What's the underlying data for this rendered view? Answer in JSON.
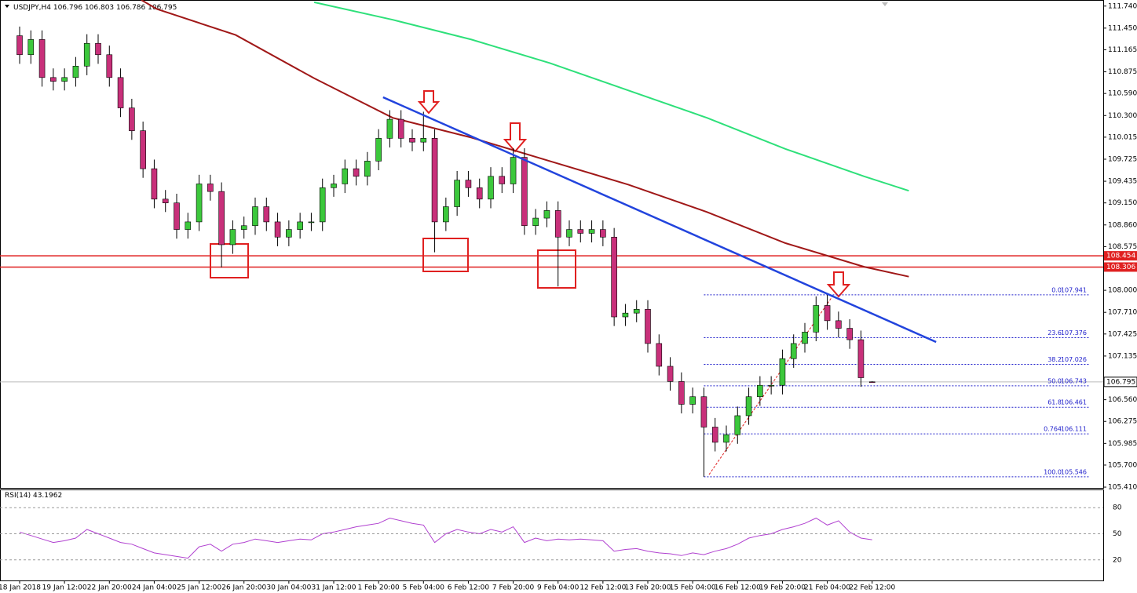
{
  "chart_data": {
    "type": "candlestick",
    "title": "USDJPY,H4",
    "ohlc": {
      "open": [
        111.35,
        111.1,
        111.3,
        110.8,
        110.75,
        110.8,
        110.95,
        111.25,
        111.1,
        110.8,
        110.4,
        110.1,
        109.6,
        109.2,
        109.15,
        108.8,
        108.9,
        109.4,
        109.3,
        108.6,
        108.8,
        108.85,
        109.1,
        108.9,
        108.7,
        108.8,
        108.9,
        108.9,
        109.35,
        109.4,
        109.6,
        109.5,
        109.7,
        110.0,
        110.25,
        110.0,
        109.95,
        110.0,
        108.9,
        109.1,
        109.45,
        109.35,
        109.2,
        109.5,
        109.4,
        109.75,
        108.85,
        108.95,
        109.05,
        108.7,
        108.8,
        108.75,
        108.8,
        108.7,
        107.65,
        107.7,
        107.75,
        107.3,
        107.0,
        106.8,
        106.5,
        106.6,
        106.2,
        106.0,
        106.1,
        106.35,
        106.6,
        106.75,
        106.75,
        107.1,
        107.3,
        107.45,
        107.8,
        107.6,
        107.5,
        107.35,
        106.796
      ],
      "high": [
        111.47,
        111.42,
        111.42,
        110.92,
        110.92,
        111.07,
        111.37,
        111.37,
        111.22,
        110.92,
        110.52,
        110.22,
        109.72,
        109.32,
        109.27,
        109.02,
        109.52,
        109.52,
        109.42,
        108.92,
        108.97,
        109.22,
        109.22,
        109.02,
        108.92,
        109.02,
        109.02,
        109.47,
        109.52,
        109.72,
        109.72,
        109.82,
        110.12,
        110.37,
        110.37,
        110.12,
        110.35,
        110.12,
        109.22,
        109.57,
        109.57,
        109.47,
        109.62,
        109.62,
        109.87,
        109.87,
        109.07,
        109.17,
        109.17,
        108.92,
        108.92,
        108.92,
        108.92,
        108.82,
        107.82,
        107.87,
        107.87,
        107.42,
        107.12,
        106.92,
        106.72,
        106.72,
        106.32,
        106.22,
        106.47,
        106.72,
        106.87,
        106.87,
        107.22,
        107.42,
        107.57,
        107.92,
        107.941,
        107.72,
        107.62,
        107.47,
        106.803
      ],
      "low": [
        110.98,
        110.98,
        110.68,
        110.63,
        110.63,
        110.68,
        110.83,
        110.98,
        110.68,
        110.28,
        109.98,
        109.48,
        109.08,
        109.03,
        108.68,
        108.68,
        108.78,
        109.18,
        108.3,
        108.48,
        108.68,
        108.73,
        108.78,
        108.58,
        108.58,
        108.68,
        108.78,
        108.78,
        109.23,
        109.28,
        109.38,
        109.38,
        109.58,
        109.88,
        109.88,
        109.83,
        109.83,
        108.5,
        108.78,
        108.98,
        109.23,
        109.08,
        109.08,
        109.28,
        109.28,
        108.73,
        108.73,
        108.83,
        108.05,
        108.58,
        108.63,
        108.63,
        108.58,
        107.53,
        107.53,
        107.58,
        107.18,
        106.88,
        106.68,
        106.38,
        106.38,
        105.546,
        105.88,
        105.88,
        105.98,
        106.23,
        106.48,
        106.63,
        106.63,
        106.98,
        107.18,
        107.33,
        107.48,
        107.38,
        107.23,
        106.73,
        106.786
      ],
      "close": [
        111.1,
        111.3,
        110.8,
        110.75,
        110.8,
        110.95,
        111.25,
        111.1,
        110.8,
        110.4,
        110.1,
        109.6,
        109.2,
        109.15,
        108.8,
        108.9,
        109.4,
        109.3,
        108.6,
        108.8,
        108.85,
        109.1,
        108.9,
        108.7,
        108.8,
        108.9,
        108.9,
        109.35,
        109.4,
        109.6,
        109.5,
        109.7,
        110.0,
        110.25,
        110.0,
        109.95,
        110.0,
        108.9,
        109.1,
        109.45,
        109.35,
        109.2,
        109.5,
        109.4,
        109.75,
        108.85,
        108.95,
        109.05,
        108.7,
        108.8,
        108.75,
        108.8,
        108.7,
        107.65,
        107.7,
        107.75,
        107.3,
        107.0,
        106.8,
        106.5,
        106.6,
        106.2,
        106.0,
        106.1,
        106.35,
        106.6,
        106.75,
        106.75,
        107.1,
        107.3,
        107.45,
        107.8,
        107.6,
        107.5,
        107.35,
        106.85,
        106.795
      ],
      "up_color": "#3cc83c",
      "down_color": "#c8307a"
    },
    "moving_averages": [
      {
        "color": "#a01818",
        "x": [
          10.85,
          12.25,
          19.26,
          26.26,
          33.26,
          40.27,
          47.27,
          54.27,
          61.27,
          68.28,
          75.28,
          79.27
        ],
        "values": [
          111.82,
          111.7,
          111.36,
          110.79,
          110.27,
          110.01,
          109.7,
          109.39,
          109.03,
          108.62,
          108.31,
          108.18
        ]
      },
      {
        "color": "#2ee07a",
        "x": [
          26.26,
          33.26,
          40.27,
          47.27,
          54.27,
          61.27,
          68.28,
          75.28,
          79.27
        ],
        "values": [
          111.79,
          111.56,
          111.3,
          110.99,
          110.63,
          110.27,
          109.86,
          109.5,
          109.31
        ]
      }
    ],
    "trendline": {
      "color": "#2244dd",
      "x": [
        32.4,
        81.7
      ],
      "y": [
        110.54,
        107.32
      ]
    },
    "levels": [
      {
        "value": 108.454,
        "color": "#e02020"
      },
      {
        "value": 108.306,
        "color": "#e02020"
      }
    ],
    "fibonacci": {
      "color": "#2222cc",
      "start": 61,
      "levels": [
        {
          "label": "0.0",
          "value": 107.941
        },
        {
          "label": "23.6",
          "value": 107.376
        },
        {
          "label": "38.2",
          "value": 107.026
        },
        {
          "label": "50.0",
          "value": 106.743
        },
        {
          "label": "61.8",
          "value": 106.461
        },
        {
          "label": "0.764",
          "value": 106.111
        },
        {
          "label": "100.0",
          "value": 105.546
        }
      ]
    },
    "xlim": [
      -1.75,
      96.6
    ],
    "ylim": [
      105.4,
      111.82
    ],
    "yticks": [
      {
        "value": 111.74,
        "label": "111.740"
      },
      {
        "value": 111.45,
        "label": "111.450"
      },
      {
        "value": 111.165,
        "label": "111.165"
      },
      {
        "value": 110.875,
        "label": "110.875"
      },
      {
        "value": 110.59,
        "label": "110.590"
      },
      {
        "value": 110.3,
        "label": "110.300"
      },
      {
        "value": 110.015,
        "label": "110.015"
      },
      {
        "value": 109.725,
        "label": "109.725"
      },
      {
        "value": 109.435,
        "label": "109.435"
      },
      {
        "value": 109.15,
        "label": "109.150"
      },
      {
        "value": 108.86,
        "label": "108.860"
      },
      {
        "value": 108.575,
        "label": "108.575"
      },
      {
        "value": 108.0,
        "label": "108.000"
      },
      {
        "value": 107.71,
        "label": "107.710"
      },
      {
        "value": 107.425,
        "label": "107.425"
      },
      {
        "value": 107.135,
        "label": "107.135"
      },
      {
        "value": 106.56,
        "label": "106.560"
      },
      {
        "value": 106.275,
        "label": "106.275"
      },
      {
        "value": 105.985,
        "label": "105.985"
      },
      {
        "value": 105.7,
        "label": "105.700"
      },
      {
        "value": 105.41,
        "label": "105.410"
      }
    ],
    "xticks": [
      {
        "value": 0,
        "label": "18 Jan 2018"
      },
      {
        "value": 4,
        "label": "19 Jan 12:00"
      },
      {
        "value": 8,
        "label": "22 Jan 20:00"
      },
      {
        "value": 12,
        "label": "24 Jan 04:00"
      },
      {
        "value": 16,
        "label": "25 Jan 12:00"
      },
      {
        "value": 20,
        "label": "26 Jan 20:00"
      },
      {
        "value": 24,
        "label": "30 Jan 04:00"
      },
      {
        "value": 28,
        "label": "31 Jan 12:00"
      },
      {
        "value": 32,
        "label": "1 Feb 20:00"
      },
      {
        "value": 36,
        "label": "5 Feb 04:00"
      },
      {
        "value": 40,
        "label": "6 Feb 12:00"
      },
      {
        "value": 44,
        "label": "7 Feb 20:00"
      },
      {
        "value": 48,
        "label": "9 Feb 04:00"
      },
      {
        "value": 52,
        "label": "12 Feb 12:00"
      },
      {
        "value": 56,
        "label": "13 Feb 20:00"
      },
      {
        "value": 60,
        "label": "15 Feb 04:00"
      },
      {
        "value": 64,
        "label": "16 Feb 12:00"
      },
      {
        "value": 68,
        "label": "19 Feb 20:00"
      },
      {
        "value": 72,
        "label": "21 Feb 04:00"
      },
      {
        "value": 76,
        "label": "22 Feb 12:00"
      }
    ],
    "rsi": {
      "label": "RSI(14)",
      "color": "#b040d0",
      "ylim": [
        0,
        100
      ],
      "yticks": [
        20,
        50,
        80
      ],
      "values": [
        52,
        48,
        44,
        40,
        42,
        45,
        55,
        50,
        45,
        40,
        38,
        33,
        28,
        26,
        24,
        22,
        35,
        38,
        30,
        38,
        40,
        44,
        42,
        40,
        42,
        44,
        43,
        50,
        52,
        55,
        58,
        60,
        62,
        68,
        65,
        62,
        60,
        40,
        50,
        55,
        52,
        50,
        55,
        52,
        58,
        40,
        45,
        42,
        44,
        43,
        44,
        43,
        42,
        30,
        32,
        33,
        30,
        28,
        27,
        25,
        28,
        26,
        30,
        33,
        38,
        45,
        48,
        50,
        55,
        58,
        62,
        68,
        60,
        65,
        52,
        45,
        43.1962
      ]
    }
  }
}
